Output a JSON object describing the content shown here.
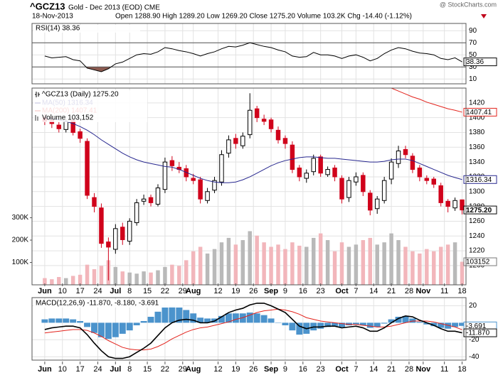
{
  "header": {
    "symbol": "^GCZ13",
    "name": "Gold - Dec 2013 (EOD) CME",
    "date": "18-Nov-2013",
    "quote": "Open 1288.90 High 1289.20 Low 1269.20 Close 1275.20 Volume 103.2K Chg -14.40 (-1.12%)",
    "source": "@ StockCharts.com"
  },
  "chart_data": {
    "type": "candlestick",
    "legend": "^GCZ13 (Daily) 1275.20",
    "x": [
      0,
      2,
      4,
      6,
      8,
      10,
      12,
      14,
      16,
      18,
      20,
      22,
      24,
      26,
      28,
      30,
      32,
      34,
      36,
      38,
      40,
      42,
      44,
      46,
      48,
      50,
      52,
      54,
      56,
      58,
      60,
      62,
      64,
      66,
      68,
      70,
      72,
      74,
      76,
      78,
      80,
      82,
      84,
      86,
      88,
      90,
      92,
      94,
      96,
      98,
      100,
      102,
      104,
      106,
      108,
      110,
      112,
      114,
      116,
      118
    ],
    "xlim": [
      -3.6,
      119.1
    ],
    "xticks": [
      {
        "value": 0,
        "label": "Jun"
      },
      {
        "value": 5,
        "label": "10"
      },
      {
        "value": 10,
        "label": "17"
      },
      {
        "value": 15,
        "label": "24"
      },
      {
        "value": 20,
        "label": "Jul"
      },
      {
        "value": 24,
        "label": "8"
      },
      {
        "value": 29,
        "label": "15"
      },
      {
        "value": 34,
        "label": "22"
      },
      {
        "value": 39,
        "label": "29"
      },
      {
        "value": 42,
        "label": "Aug"
      },
      {
        "value": 49,
        "label": "12"
      },
      {
        "value": 54,
        "label": "19"
      },
      {
        "value": 59,
        "label": "26"
      },
      {
        "value": 64,
        "label": "Sep"
      },
      {
        "value": 68,
        "label": "9"
      },
      {
        "value": 73,
        "label": "16"
      },
      {
        "value": 78,
        "label": "23"
      },
      {
        "value": 84,
        "label": "Oct"
      },
      {
        "value": 88,
        "label": "7"
      },
      {
        "value": 93,
        "label": "14"
      },
      {
        "value": 98,
        "label": "21"
      },
      {
        "value": 103,
        "label": "28"
      },
      {
        "value": 107,
        "label": "Nov"
      },
      {
        "value": 113,
        "label": "11"
      },
      {
        "value": 118,
        "label": "18"
      }
    ],
    "open": [
      1400,
      1396,
      1390,
      1384,
      1396,
      1381,
      1368,
      1292,
      1278,
      1232,
      1222,
      1252,
      1233,
      1258,
      1287,
      1292,
      1283,
      1303,
      1342,
      1333,
      1331,
      1318,
      1316,
      1288,
      1302,
      1313,
      1352,
      1372,
      1362,
      1377,
      1412,
      1398,
      1397,
      1383,
      1372,
      1363,
      1332,
      1318,
      1327,
      1347,
      1323,
      1332,
      1318,
      1292,
      1313,
      1322,
      1298,
      1277,
      1288,
      1317,
      1338,
      1357,
      1348,
      1332,
      1318,
      1317,
      1308,
      1287,
      1278,
      1288.9
    ],
    "high": [
      1405,
      1401,
      1394,
      1398,
      1399,
      1385,
      1372,
      1298,
      1284,
      1238,
      1256,
      1258,
      1264,
      1290,
      1296,
      1296,
      1310,
      1346,
      1348,
      1340,
      1336,
      1324,
      1320,
      1305,
      1320,
      1356,
      1376,
      1378,
      1380,
      1433,
      1416,
      1404,
      1400,
      1388,
      1376,
      1368,
      1336,
      1330,
      1350,
      1350,
      1334,
      1336,
      1322,
      1320,
      1326,
      1326,
      1302,
      1294,
      1320,
      1345,
      1362,
      1362,
      1352,
      1336,
      1322,
      1320,
      1312,
      1290,
      1292,
      1289.2
    ],
    "low": [
      1390,
      1386,
      1380,
      1380,
      1376,
      1366,
      1290,
      1272,
      1224,
      1180,
      1216,
      1228,
      1228,
      1254,
      1282,
      1280,
      1280,
      1298,
      1328,
      1325,
      1314,
      1310,
      1284,
      1284,
      1298,
      1308,
      1346,
      1358,
      1358,
      1372,
      1394,
      1390,
      1380,
      1365,
      1358,
      1325,
      1314,
      1312,
      1322,
      1320,
      1320,
      1314,
      1284,
      1286,
      1308,
      1294,
      1268,
      1270,
      1284,
      1310,
      1332,
      1345,
      1325,
      1314,
      1310,
      1305,
      1280,
      1272,
      1274,
      1269.2
    ],
    "close": [
      1395,
      1392,
      1385,
      1395,
      1380,
      1372,
      1295,
      1280,
      1230,
      1225,
      1250,
      1235,
      1260,
      1285,
      1290,
      1285,
      1305,
      1340,
      1335,
      1330,
      1320,
      1315,
      1290,
      1300,
      1315,
      1350,
      1370,
      1365,
      1375,
      1410,
      1400,
      1395,
      1385,
      1370,
      1365,
      1330,
      1320,
      1325,
      1345,
      1325,
      1330,
      1320,
      1290,
      1315,
      1320,
      1300,
      1275,
      1290,
      1315,
      1340,
      1355,
      1350,
      1330,
      1320,
      1315,
      1310,
      1285,
      1280,
      1288,
      1275.2
    ],
    "up_color": "#000000",
    "down_color": "#d0021b",
    "ylim": [
      1174,
      1440
    ],
    "yticks": [
      1200,
      1220,
      1240,
      1260,
      1280,
      1300,
      1320,
      1340,
      1360,
      1380,
      1400,
      1420
    ],
    "grid": true,
    "series": [
      {
        "name": "MA(50) 1316.34",
        "color": "#27278f",
        "values": [
          1400,
          1399,
          1397,
          1395,
          1392,
          1388,
          1383,
          1377,
          1370,
          1364,
          1358,
          1352,
          1347,
          1343,
          1340,
          1338,
          1336,
          1334,
          1333,
          1330,
          1326,
          1322,
          1318,
          1315,
          1313,
          1312,
          1312,
          1313,
          1316,
          1320,
          1325,
          1330,
          1335,
          1339,
          1342,
          1344,
          1346,
          1347,
          1347,
          1346,
          1345,
          1345,
          1344,
          1343,
          1342,
          1341,
          1340,
          1340,
          1341,
          1343,
          1344,
          1344,
          1342,
          1338,
          1334,
          1330,
          1326,
          1322,
          1319,
          1316.34
        ]
      },
      {
        "name": "MA(200) 1407.41",
        "color": "#e3231c",
        "values": [
          null,
          null,
          null,
          null,
          null,
          null,
          null,
          null,
          null,
          null,
          null,
          null,
          null,
          null,
          null,
          null,
          null,
          null,
          null,
          null,
          null,
          null,
          null,
          null,
          null,
          null,
          null,
          null,
          null,
          null,
          null,
          null,
          null,
          null,
          null,
          null,
          null,
          null,
          null,
          null,
          null,
          null,
          null,
          null,
          null,
          null,
          null,
          null,
          null,
          1440,
          1436,
          1432,
          1428,
          1425,
          1421,
          1418,
          1415,
          1412,
          1410,
          1407.41
        ]
      }
    ],
    "markers": [
      {
        "value": 1407.41,
        "label": "1407.41",
        "color": "#e3231c"
      },
      {
        "value": 1316.34,
        "label": "1316.34",
        "color": "#27278f"
      },
      {
        "value": 1275.2,
        "label": "1275.20",
        "color": "#000000"
      }
    ],
    "volume": {
      "name": "Volume 103,152",
      "values": [
        30000,
        25000,
        35000,
        30000,
        40000,
        45000,
        90000,
        70000,
        85000,
        110000,
        80000,
        60000,
        55000,
        50000,
        60000,
        55000,
        65000,
        80000,
        90000,
        85000,
        110000,
        150000,
        170000,
        140000,
        160000,
        190000,
        210000,
        180000,
        200000,
        240000,
        220000,
        190000,
        170000,
        180000,
        160000,
        190000,
        175000,
        170000,
        210000,
        230000,
        200000,
        150000,
        190000,
        170000,
        180000,
        200000,
        210000,
        180000,
        190000,
        230000,
        200000,
        170000,
        150000,
        140000,
        160000,
        150000,
        170000,
        180000,
        190000,
        103152
      ],
      "up_color": "#b9b9b9",
      "down_color": "#f2b6bb",
      "y2lim": [
        0,
        880000
      ],
      "y2ticks": [
        {
          "value": 100000,
          "label": "100K"
        },
        {
          "value": 200000,
          "label": "200K"
        },
        {
          "value": 300000,
          "label": "300K"
        }
      ],
      "markers": [
        {
          "value": 103152,
          "label": "103152",
          "color": "#777777"
        }
      ]
    },
    "rsi": {
      "legend": "RSI(14) 38.36",
      "values": [
        48,
        45,
        46,
        47,
        42,
        40,
        28,
        25,
        22,
        27,
        35,
        38,
        44,
        50,
        52,
        51,
        55,
        62,
        60,
        57,
        55,
        52,
        48,
        52,
        55,
        60,
        64,
        63,
        66,
        70,
        67,
        64,
        62,
        58,
        55,
        48,
        46,
        47,
        54,
        50,
        50,
        48,
        44,
        48,
        50,
        46,
        40,
        44,
        52,
        58,
        62,
        60,
        56,
        53,
        52,
        50,
        44,
        42,
        45,
        38.36
      ],
      "color": "#000000",
      "fill_color": "#8c5b50",
      "oversold": 30,
      "overbought": 70,
      "ylim": [
        2,
        102
      ],
      "yticks": [
        10,
        30,
        50,
        70,
        90
      ],
      "markers": [
        {
          "value": 38.36,
          "label": "38.36",
          "color": "#000000"
        }
      ]
    },
    "macd": {
      "legend": "MACD(12,26,9) -11.870, -8.180, -3.691",
      "macd_line": [
        -8,
        -6,
        -5,
        -4,
        -4,
        -6,
        -14,
        -24,
        -33,
        -40,
        -42,
        -42,
        -40,
        -35,
        -30,
        -24,
        -15,
        -6,
        0,
        3,
        4,
        3,
        0,
        0,
        2,
        7,
        12,
        15,
        17,
        21,
        23,
        23,
        20,
        16,
        12,
        4,
        -4,
        -7,
        -5,
        -5,
        -4,
        -4,
        -6,
        -5,
        -4,
        -6,
        -10,
        -10,
        -6,
        0,
        5,
        8,
        7,
        3,
        0,
        -3,
        -7,
        -10,
        -10,
        -11.87
      ],
      "signal_line": [
        -12,
        -11,
        -10,
        -9,
        -8,
        -8,
        -9,
        -12,
        -16,
        -21,
        -25,
        -29,
        -31,
        -32,
        -32,
        -31,
        -28,
        -24,
        -19,
        -15,
        -11,
        -8,
        -6,
        -5,
        -3,
        -1,
        1,
        4,
        6,
        9,
        12,
        14,
        15,
        16,
        15,
        13,
        10,
        6,
        4,
        2,
        1,
        0,
        -1,
        -2,
        -2,
        -3,
        -4,
        -5,
        -5,
        -4,
        -2,
        0,
        2,
        2,
        2,
        1,
        -1,
        -3,
        -5,
        -8.18
      ],
      "histogram": [
        4,
        5,
        5,
        5,
        4,
        2,
        -5,
        -12,
        -17,
        -19,
        -17,
        -13,
        -9,
        -3,
        2,
        7,
        13,
        18,
        19,
        18,
        15,
        11,
        6,
        5,
        5,
        8,
        11,
        11,
        11,
        12,
        11,
        9,
        5,
        0,
        -3,
        -9,
        -14,
        -13,
        -9,
        -7,
        -5,
        -4,
        -5,
        -3,
        -2,
        -3,
        -6,
        -5,
        -1,
        4,
        7,
        8,
        5,
        1,
        -2,
        -4,
        -6,
        -7,
        -5,
        -3.691
      ],
      "macd_color": "#000000",
      "signal_color": "#e3231c",
      "histogram_color": "#4b93cc",
      "ylim": [
        -44,
        29.6
      ],
      "yticks": [
        20,
        -20,
        -40
      ],
      "markers": [
        {
          "value": -3.691,
          "label": "-3.691",
          "color": "#4b93cc"
        },
        {
          "value": -11.87,
          "label": "-11.870",
          "color": "#000000"
        }
      ]
    }
  }
}
